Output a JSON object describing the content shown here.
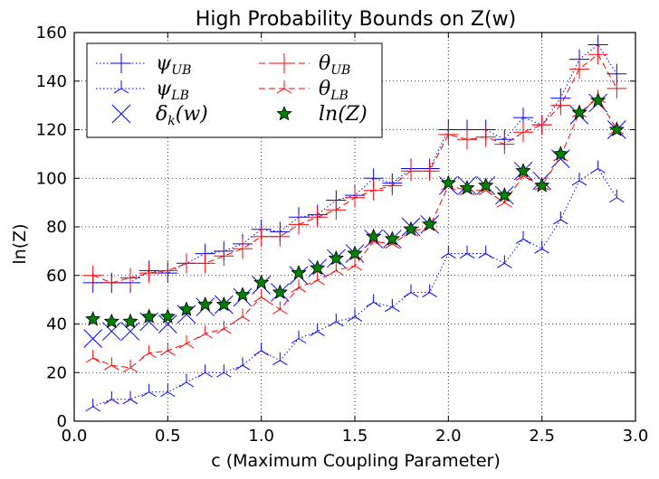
{
  "chart_data": {
    "type": "line",
    "title": "High Probability Bounds on Z(w)",
    "xlabel": "c (Maximum Coupling Parameter)",
    "ylabel": "ln(Z)",
    "xlim": [
      0.0,
      3.0
    ],
    "ylim": [
      0,
      160
    ],
    "xticks": [
      0.0,
      0.5,
      1.0,
      1.5,
      2.0,
      2.5,
      3.0
    ],
    "xtick_labels": [
      "0.0",
      "0.5",
      "1.0",
      "1.5",
      "2.0",
      "2.5",
      "3.0"
    ],
    "yticks": [
      0,
      20,
      40,
      60,
      80,
      100,
      120,
      140,
      160
    ],
    "ytick_labels": [
      "0",
      "20",
      "40",
      "60",
      "80",
      "100",
      "120",
      "140",
      "160"
    ],
    "grid": true,
    "legend_position": "top-left",
    "x": [
      0.1,
      0.2,
      0.3,
      0.4,
      0.5,
      0.6,
      0.7,
      0.8,
      0.9,
      1.0,
      1.1,
      1.2,
      1.3,
      1.4,
      1.5,
      1.6,
      1.7,
      1.8,
      1.9,
      2.0,
      2.1,
      2.2,
      2.3,
      2.4,
      2.5,
      2.6,
      2.7,
      2.8,
      2.9
    ],
    "series": [
      {
        "name": "ψUB",
        "legend_main": "ψ",
        "legend_sub": "UB",
        "color": "#0000ff",
        "marker": "plus",
        "line": "dotted",
        "values": [
          57,
          57,
          57,
          62,
          61,
          65,
          69,
          70,
          73,
          79,
          78,
          84,
          85,
          91,
          93,
          100,
          98,
          104,
          104,
          120,
          120,
          120,
          116,
          125,
          122,
          133,
          149,
          155,
          143
        ]
      },
      {
        "name": "ψLB",
        "legend_main": "ψ",
        "legend_sub": "LB",
        "color": "#0000ff",
        "marker": "tri",
        "line": "dotted",
        "values": [
          6,
          9,
          9,
          12,
          12,
          16,
          20,
          20,
          23,
          29,
          25,
          34,
          37,
          41,
          43,
          49,
          47,
          53,
          53,
          69,
          69,
          69,
          65,
          75,
          71,
          83,
          99,
          104,
          92
        ]
      },
      {
        "name": "δk(w)",
        "legend_main": "δ",
        "legend_sub": "k",
        "legend_tail": "(w)",
        "color": "#0000ff",
        "marker": "x",
        "line": "none",
        "values": [
          34,
          37,
          37,
          41,
          40,
          44,
          47,
          48,
          51,
          56,
          53,
          60,
          63,
          67,
          69,
          75,
          75,
          80,
          81,
          97,
          97,
          97,
          93,
          103,
          99,
          108,
          126,
          131,
          120
        ]
      },
      {
        "name": "θUB",
        "legend_main": "θ",
        "legend_sub": "UB",
        "color": "#ff0000",
        "marker": "plus",
        "line": "dashed",
        "values": [
          60,
          57,
          59,
          61,
          62,
          65,
          65,
          68,
          71,
          76,
          76,
          81,
          84,
          87,
          92,
          95,
          97,
          103,
          103,
          118,
          116,
          117,
          114,
          119,
          122,
          130,
          145,
          151,
          137
        ]
      },
      {
        "name": "θLB",
        "legend_main": "θ",
        "legend_sub": "LB",
        "color": "#ff0000",
        "marker": "tri",
        "line": "dashed",
        "values": [
          26,
          23,
          22,
          28,
          29,
          32,
          36,
          38,
          43,
          51,
          46,
          55,
          58,
          62,
          64,
          74,
          73,
          78,
          80,
          97,
          95,
          95,
          90,
          101,
          97,
          109,
          127,
          133,
          120
        ]
      },
      {
        "name": "ln(Z)",
        "legend_main": "ln(Z)",
        "color": "#008000",
        "marker": "star",
        "line": "none",
        "values": [
          42,
          41,
          41,
          43,
          43,
          46,
          48,
          48,
          52,
          57,
          53,
          61,
          63,
          67,
          69,
          76,
          75,
          79,
          81,
          98,
          96,
          97,
          93,
          103,
          97,
          110,
          127,
          132,
          120
        ]
      }
    ]
  }
}
